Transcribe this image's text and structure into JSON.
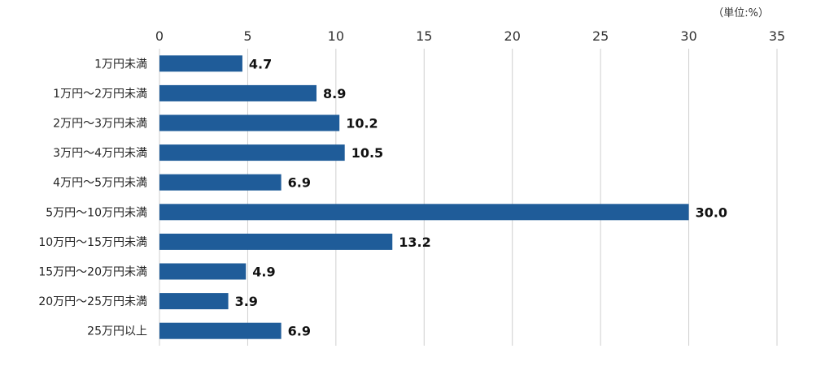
{
  "chart_data": {
    "type": "bar",
    "orientation": "horizontal",
    "unit_label": "（単位:%）",
    "categories": [
      "1万円未満",
      "1万円～2万円未満",
      "2万円～3万円未満",
      "3万円～4万円未満",
      "4万円～5万円未満",
      "5万円～10万円未満",
      "10万円～15万円未満",
      "15万円～20万円未満",
      "20万円～25万円未満",
      "25万円以上"
    ],
    "values": [
      4.7,
      8.9,
      10.2,
      10.5,
      6.9,
      30.0,
      13.2,
      4.9,
      3.9,
      6.9
    ],
    "value_labels": [
      "4.7",
      "8.9",
      "10.2",
      "10.5",
      "6.9",
      "30.0",
      "13.2",
      "4.9",
      "3.9",
      "6.9"
    ],
    "xlim": [
      0,
      35
    ],
    "xticks": [
      "0",
      "5",
      "10",
      "15",
      "20",
      "25",
      "30",
      "35"
    ],
    "grid": true,
    "bar_color": "#1f5c99"
  }
}
